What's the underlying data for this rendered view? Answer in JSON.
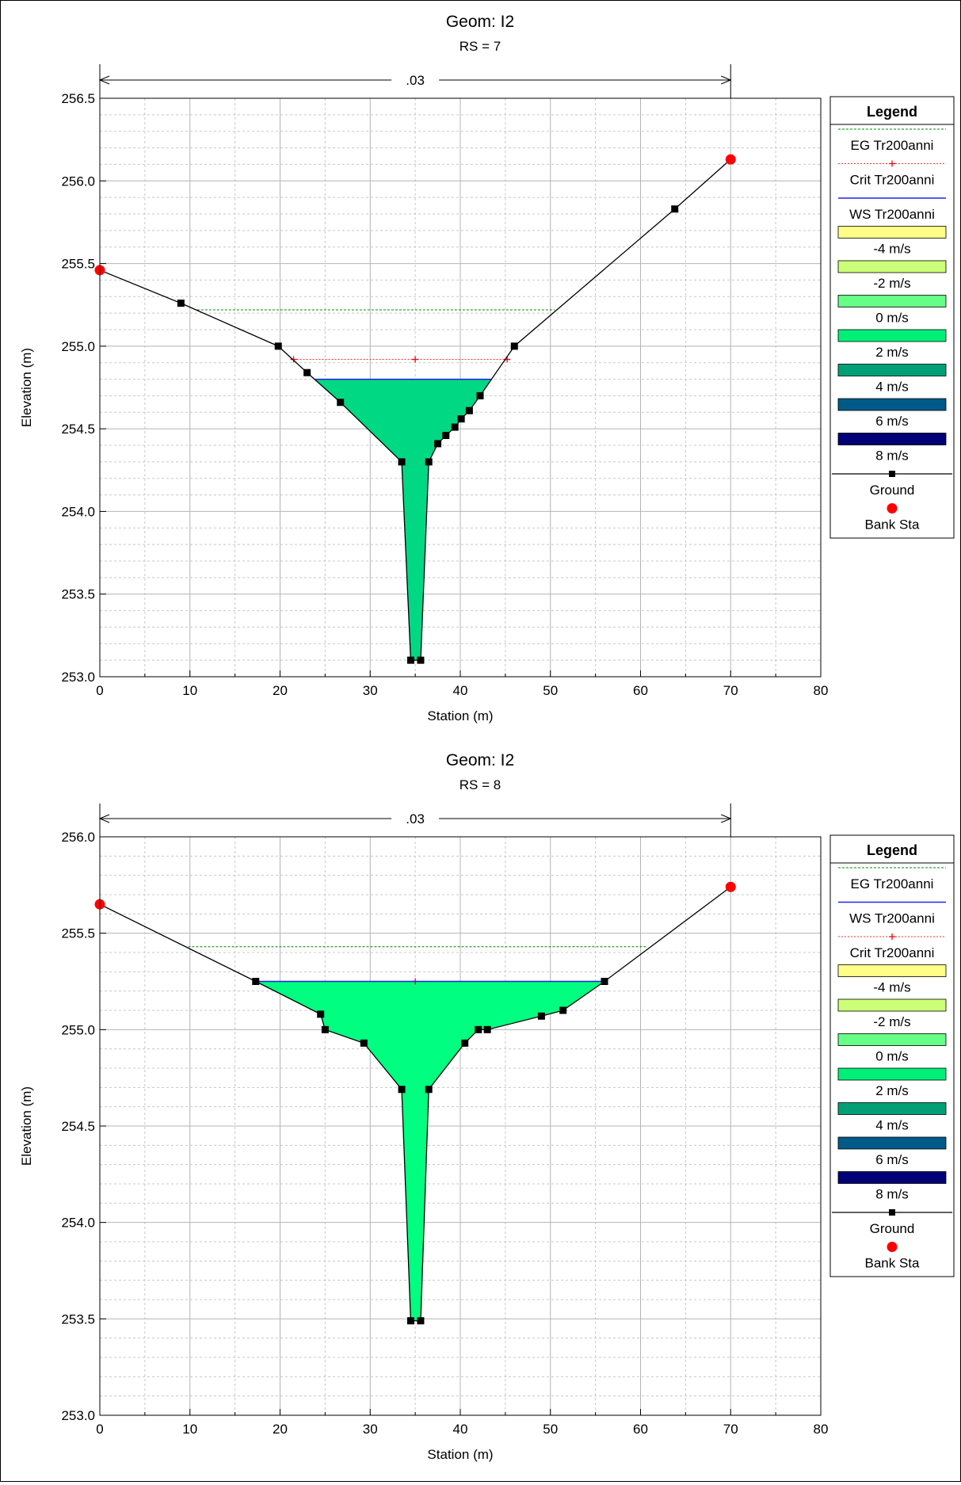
{
  "charts": [
    {
      "title": "Geom: I2",
      "subtitle": "RS = 7",
      "xlabel": "Station (m)",
      "ylabel": "Elevation (m)",
      "xlim": [
        0,
        80
      ],
      "ylim": [
        253.0,
        256.5
      ],
      "x_ticks": [
        "0",
        "10",
        "20",
        "30",
        "40",
        "50",
        "60",
        "70",
        "80"
      ],
      "y_ticks": [
        "253.0",
        "253.5",
        "254.0",
        "254.5",
        "255.0",
        "255.5",
        "256.0",
        "256.5"
      ],
      "manning": {
        "label": ".03",
        "from": 0,
        "to": 70
      },
      "ground": [
        [
          0,
          255.46
        ],
        [
          9,
          255.26
        ],
        [
          19.8,
          255.0
        ],
        [
          23,
          254.84
        ],
        [
          26.7,
          254.66
        ],
        [
          33.5,
          254.3
        ],
        [
          34.5,
          253.1
        ],
        [
          35.6,
          253.1
        ],
        [
          36.5,
          254.3
        ],
        [
          37.5,
          254.41
        ],
        [
          38.4,
          254.46
        ],
        [
          39.4,
          254.51
        ],
        [
          40.1,
          254.56
        ],
        [
          41,
          254.61
        ],
        [
          42.2,
          254.7
        ],
        [
          46,
          255.0
        ],
        [
          63.8,
          255.83
        ],
        [
          70,
          256.13
        ]
      ],
      "bank_sta": [
        [
          0,
          255.46
        ],
        [
          70,
          256.13
        ]
      ],
      "ws": {
        "elev": 254.8,
        "from": 23.9,
        "to": 43.5
      },
      "eg": {
        "elev": 255.22,
        "from": 10.8,
        "to": 50.5
      },
      "crit": {
        "elev": 254.92,
        "from": 21.5,
        "to": 45.2,
        "mid": 35
      },
      "fill_color": "#00d884",
      "legend": {
        "title": "Legend",
        "items": [
          {
            "label": "EG Tr200anni",
            "kind": "eg"
          },
          {
            "label": "Crit Tr200anni",
            "kind": "crit"
          },
          {
            "label": "WS Tr200anni",
            "kind": "ws"
          },
          {
            "label": "-4 m/s",
            "kind": "swatch",
            "color": "#ffff88"
          },
          {
            "label": "-2 m/s",
            "kind": "swatch",
            "color": "#ccff77"
          },
          {
            "label": "0 m/s",
            "kind": "swatch",
            "color": "#66ff88"
          },
          {
            "label": "2 m/s",
            "kind": "swatch",
            "color": "#00f077"
          },
          {
            "label": "4 m/s",
            "kind": "swatch",
            "color": "#00a077"
          },
          {
            "label": "6 m/s",
            "kind": "swatch",
            "color": "#005a88"
          },
          {
            "label": "8 m/s",
            "kind": "swatch",
            "color": "#000077"
          },
          {
            "label": "Ground",
            "kind": "ground"
          },
          {
            "label": "Bank Sta",
            "kind": "bank"
          }
        ]
      }
    },
    {
      "title": "Geom: I2",
      "subtitle": "RS = 8",
      "xlabel": "Station (m)",
      "ylabel": "Elevation (m)",
      "xlim": [
        0,
        80
      ],
      "ylim": [
        253.0,
        256.0
      ],
      "x_ticks": [
        "0",
        "10",
        "20",
        "30",
        "40",
        "50",
        "60",
        "70",
        "80"
      ],
      "y_ticks": [
        "253.0",
        "253.5",
        "254.0",
        "254.5",
        "255.0",
        "255.5",
        "256.0"
      ],
      "manning": {
        "label": ".03",
        "from": 0,
        "to": 70
      },
      "ground": [
        [
          0,
          255.65
        ],
        [
          17.3,
          255.25
        ],
        [
          24.5,
          255.08
        ],
        [
          25,
          255.0
        ],
        [
          29.3,
          254.93
        ],
        [
          33.5,
          254.69
        ],
        [
          34.5,
          253.49
        ],
        [
          35.6,
          253.49
        ],
        [
          36.5,
          254.69
        ],
        [
          40.5,
          254.93
        ],
        [
          42,
          255.0
        ],
        [
          43,
          255.0
        ],
        [
          49,
          255.07
        ],
        [
          51.4,
          255.1
        ],
        [
          56,
          255.25
        ],
        [
          70,
          255.74
        ]
      ],
      "bank_sta": [
        [
          0,
          255.65
        ],
        [
          70,
          255.74
        ]
      ],
      "ws": {
        "elev": 255.25,
        "from": 17.3,
        "to": 56.0
      },
      "eg": {
        "elev": 255.43,
        "from": 9.8,
        "to": 60.8
      },
      "crit": {
        "elev": 255.25,
        "from": 17.3,
        "to": 56.0,
        "mid": 35
      },
      "fill_color": "#00ff80",
      "legend": {
        "title": "Legend",
        "items": [
          {
            "label": "EG Tr200anni",
            "kind": "eg"
          },
          {
            "label": "WS Tr200anni",
            "kind": "ws"
          },
          {
            "label": "Crit Tr200anni",
            "kind": "crit"
          },
          {
            "label": "-4 m/s",
            "kind": "swatch",
            "color": "#ffff88"
          },
          {
            "label": "-2 m/s",
            "kind": "swatch",
            "color": "#ccff77"
          },
          {
            "label": "0 m/s",
            "kind": "swatch",
            "color": "#66ff88"
          },
          {
            "label": "2 m/s",
            "kind": "swatch",
            "color": "#00f077"
          },
          {
            "label": "4 m/s",
            "kind": "swatch",
            "color": "#00a077"
          },
          {
            "label": "6 m/s",
            "kind": "swatch",
            "color": "#005a88"
          },
          {
            "label": "8 m/s",
            "kind": "swatch",
            "color": "#000077"
          },
          {
            "label": "Ground",
            "kind": "ground"
          },
          {
            "label": "Bank Sta",
            "kind": "bank"
          }
        ]
      }
    }
  ]
}
